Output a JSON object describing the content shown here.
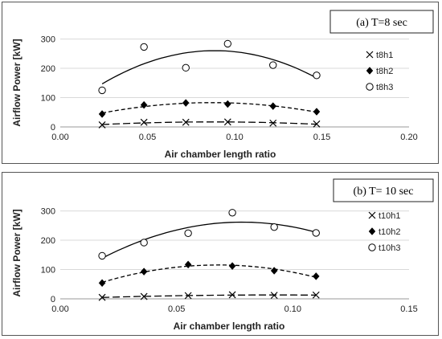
{
  "chart_data": [
    {
      "type": "scatter",
      "tag": "(a)  T=8 sec",
      "xlabel": "Air chamber length ratio",
      "ylabel": "Airflow Power [kW]",
      "xlim": [
        0,
        0.2
      ],
      "ylim": [
        0,
        340
      ],
      "xticks": [
        "0.00",
        "0.05",
        "0.10",
        "0.15",
        "0.20"
      ],
      "xtick_values": [
        0,
        0.05,
        0.1,
        0.15,
        0.2
      ],
      "yticks": [
        "0",
        "100",
        "200",
        "300"
      ],
      "ytick_values": [
        0,
        100,
        200,
        300
      ],
      "legend_position": "right",
      "series": [
        {
          "name": "t8h1",
          "marker": "x",
          "trend": "long-dash",
          "x": [
            0.024,
            0.048,
            0.072,
            0.096,
            0.122,
            0.147
          ],
          "y": [
            7,
            16,
            16,
            17,
            13,
            10
          ]
        },
        {
          "name": "t8h2",
          "marker": "diamond",
          "trend": "dash",
          "x": [
            0.024,
            0.048,
            0.072,
            0.096,
            0.122,
            0.147
          ],
          "y": [
            44,
            75,
            82,
            78,
            71,
            52
          ]
        },
        {
          "name": "t8h3",
          "marker": "circle",
          "trend": "solid",
          "x": [
            0.024,
            0.048,
            0.072,
            0.096,
            0.122,
            0.147
          ],
          "y": [
            125,
            273,
            202,
            284,
            211,
            176
          ]
        }
      ]
    },
    {
      "type": "scatter",
      "tag": "(b)  T= 10 sec",
      "xlabel": "Air chamber length ratio",
      "ylabel": "Airflow Power [kW]",
      "xlim": [
        0,
        0.15
      ],
      "ylim": [
        0,
        340
      ],
      "xticks": [
        "0.00",
        "0.05",
        "0.10",
        "0.15"
      ],
      "xtick_values": [
        0,
        0.05,
        0.1,
        0.15
      ],
      "yticks": [
        "0",
        "100",
        "200",
        "300"
      ],
      "ytick_values": [
        0,
        100,
        200,
        300
      ],
      "legend_position": "right",
      "series": [
        {
          "name": "t10h1",
          "marker": "x",
          "trend": "long-dash",
          "x": [
            0.018,
            0.036,
            0.055,
            0.074,
            0.092,
            0.11
          ],
          "y": [
            5,
            8,
            11,
            14,
            12,
            13
          ]
        },
        {
          "name": "t10h2",
          "marker": "diamond",
          "trend": "dash",
          "x": [
            0.018,
            0.036,
            0.055,
            0.074,
            0.092,
            0.11
          ],
          "y": [
            54,
            93,
            117,
            112,
            96,
            77
          ]
        },
        {
          "name": "t10h3",
          "marker": "circle",
          "trend": "solid",
          "x": [
            0.018,
            0.036,
            0.055,
            0.074,
            0.092,
            0.11
          ],
          "y": [
            147,
            192,
            224,
            294,
            245,
            225
          ]
        }
      ]
    }
  ]
}
